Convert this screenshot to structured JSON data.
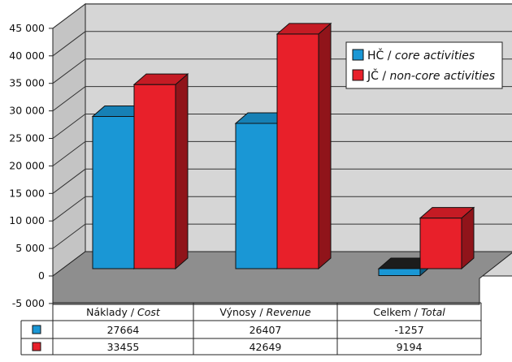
{
  "chart_data": {
    "type": "bar",
    "style": "3d-clustered",
    "categories": [
      {
        "main": "Náklady",
        "sub": "Cost"
      },
      {
        "main": "Výnosy",
        "sub": "Revenue"
      },
      {
        "main": "Celkem",
        "sub": "Total"
      }
    ],
    "series": [
      {
        "name_main": "HČ",
        "name_sub": "core activities",
        "color": "#1a97d5",
        "values": [
          27664,
          26407,
          -1257
        ]
      },
      {
        "name_main": "JČ",
        "name_sub": "non-core activities",
        "color": "#e8202a",
        "values": [
          33455,
          42649,
          9194
        ]
      }
    ],
    "ylim": [
      -5000,
      45000
    ],
    "y_ticks": [
      "45 000",
      "40 000",
      "35 000",
      "30 000",
      "25 000",
      "20 000",
      "15 000",
      "10 000",
      "5 000",
      "0",
      "-5 000"
    ],
    "grid": true,
    "legend_position": "top-right",
    "wall_color": "#d6d6d6",
    "floor_color": "#8e8e8e"
  },
  "table": {
    "rows": [
      [
        "27664",
        "26407",
        "-1257"
      ],
      [
        "33455",
        "42649",
        "9194"
      ]
    ]
  }
}
